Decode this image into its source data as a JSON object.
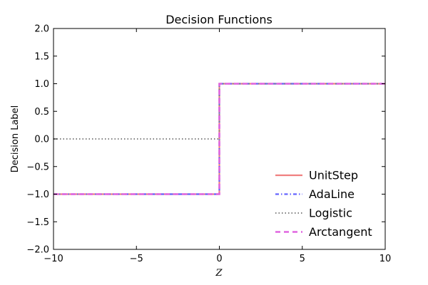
{
  "chart_data": {
    "type": "line",
    "title": "Decision Functions",
    "xlabel": "Z",
    "ylabel": "Decision Label",
    "xlim": [
      -10,
      10
    ],
    "ylim": [
      -2.0,
      2.0
    ],
    "xticks": [
      -10,
      -5,
      0,
      5,
      10
    ],
    "xtick_labels": [
      "−10",
      "−5",
      "0",
      "5",
      "10"
    ],
    "yticks": [
      -2.0,
      -1.5,
      -1.0,
      -0.5,
      0.0,
      0.5,
      1.0,
      1.5,
      2.0
    ],
    "ytick_labels": [
      "−2.0",
      "−1.5",
      "−1.0",
      "−0.5",
      "0.0",
      "0.5",
      "1.0",
      "1.5",
      "2.0"
    ],
    "grid": false,
    "legend_position": "lower-right",
    "series": [
      {
        "name": "UnitStep",
        "color": "#f08080",
        "style": "solid",
        "points": [
          [
            -10,
            -1
          ],
          [
            0,
            -1
          ],
          [
            0,
            1
          ],
          [
            10,
            1
          ]
        ]
      },
      {
        "name": "AdaLine",
        "color": "#6666ff",
        "style": "dashdot",
        "points": [
          [
            -10,
            -1
          ],
          [
            0,
            -1
          ],
          [
            0,
            1
          ],
          [
            10,
            1
          ]
        ]
      },
      {
        "name": "Logistic",
        "color": "#808080",
        "style": "dotted",
        "points": [
          [
            -10,
            0
          ],
          [
            0,
            0
          ],
          [
            0,
            1
          ],
          [
            10,
            1
          ]
        ]
      },
      {
        "name": "Arctangent",
        "color": "#e066e0",
        "style": "dashed",
        "points": [
          [
            -10,
            -1
          ],
          [
            0,
            -1
          ],
          [
            0,
            1
          ],
          [
            10,
            1
          ]
        ]
      }
    ]
  }
}
